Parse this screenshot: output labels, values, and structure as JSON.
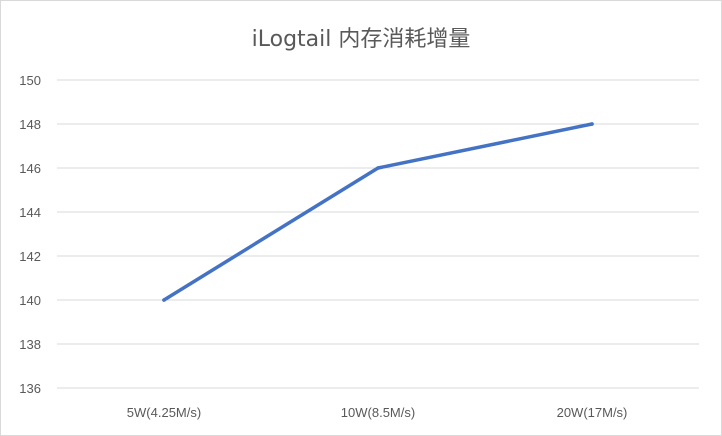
{
  "chart_data": {
    "type": "line",
    "title": "iLogtail 内存消耗增量",
    "xlabel": "",
    "ylabel": "",
    "categories": [
      "5W(4.25M/s)",
      "10W(8.5M/s)",
      "20W(17M/s)"
    ],
    "series": [
      {
        "values": [
          140,
          146,
          148
        ],
        "color": "#4472c4"
      }
    ],
    "ylim": [
      136,
      150
    ],
    "yticks": [
      "136",
      "138",
      "140",
      "142",
      "144",
      "146",
      "148",
      "150"
    ],
    "grid": true,
    "legend": "none"
  },
  "colors": {
    "line": "#4472c4",
    "grid": "#d9d9d9",
    "text": "#595959"
  }
}
